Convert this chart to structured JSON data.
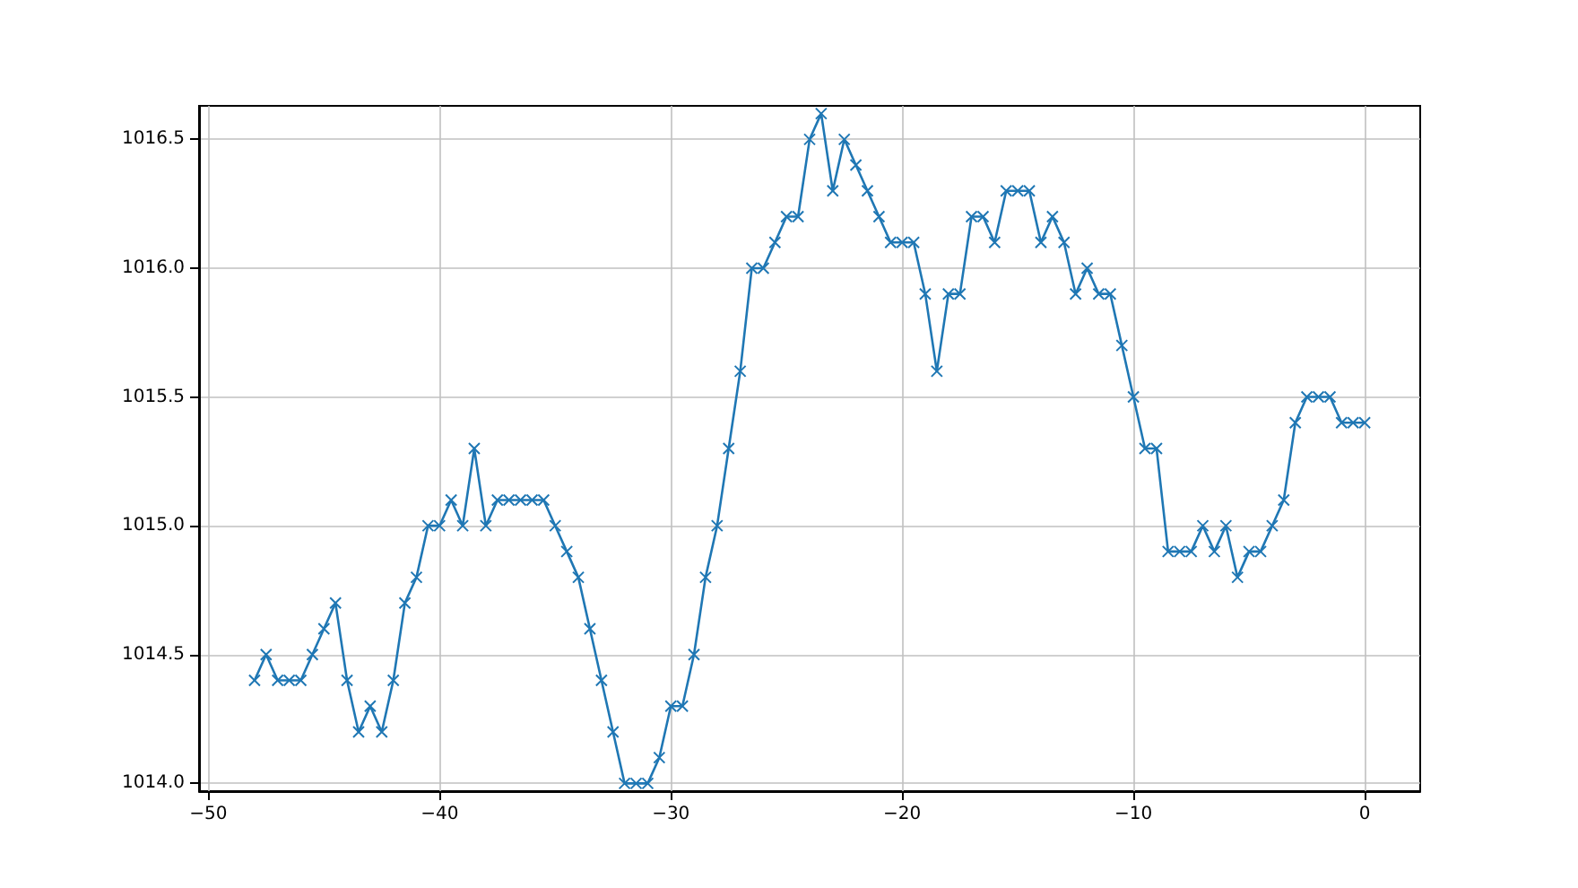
{
  "chart_data": {
    "type": "line",
    "x": [
      -48,
      -47.5,
      -47,
      -46.5,
      -46,
      -45.5,
      -45,
      -44.5,
      -44,
      -43.5,
      -43,
      -42.5,
      -42,
      -41.5,
      -41,
      -40.5,
      -40,
      -39.5,
      -39,
      -38.5,
      -38,
      -37.5,
      -37,
      -36.5,
      -36,
      -35.5,
      -35,
      -34.5,
      -34,
      -33.5,
      -33,
      -32.5,
      -32,
      -31.5,
      -31,
      -30.5,
      -30,
      -29.5,
      -29,
      -28.5,
      -28,
      -27.5,
      -27,
      -26.5,
      -26,
      -25.5,
      -25,
      -24.5,
      -24,
      -23.5,
      -23,
      -22.5,
      -22,
      -21.5,
      -21,
      -20.5,
      -20,
      -19.5,
      -19,
      -18.5,
      -18,
      -17.5,
      -17,
      -16.5,
      -16,
      -15.5,
      -15,
      -14.5,
      -14,
      -13.5,
      -13,
      -12.5,
      -12,
      -11.5,
      -11,
      -10.5,
      -10,
      -9.5,
      -9,
      -8.5,
      -8,
      -7.5,
      -7,
      -6.5,
      -6,
      -5.5,
      -5,
      -4.5,
      -4,
      -3.5,
      -3,
      -2.5,
      -2,
      -1.5,
      -1,
      -0.5,
      0
    ],
    "series": [
      {
        "color": "#1f77b4",
        "values": [
          1014.4,
          1014.5,
          1014.4,
          1014.4,
          1014.4,
          1014.5,
          1014.6,
          1014.7,
          1014.4,
          1014.2,
          1014.3,
          1014.2,
          1014.4,
          1014.7,
          1014.8,
          1015.0,
          1015.0,
          1015.1,
          1015.0,
          1015.3,
          1015.0,
          1015.1,
          1015.1,
          1015.1,
          1015.1,
          1015.1,
          1015.0,
          1014.9,
          1014.8,
          1014.6,
          1014.4,
          1014.2,
          1014.0,
          1014.0,
          1014.0,
          1014.1,
          1014.3,
          1014.3,
          1014.5,
          1014.8,
          1015.0,
          1015.3,
          1015.6,
          1016.0,
          1016.0,
          1016.1,
          1016.2,
          1016.2,
          1016.5,
          1016.6,
          1016.3,
          1016.5,
          1016.4,
          1016.3,
          1016.2,
          1016.1,
          1016.1,
          1016.1,
          1015.9,
          1015.6,
          1015.9,
          1015.9,
          1016.2,
          1016.2,
          1016.1,
          1016.3,
          1016.3,
          1016.3,
          1016.1,
          1016.2,
          1016.1,
          1015.9,
          1016.0,
          1015.9,
          1015.9,
          1015.7,
          1015.5,
          1015.3,
          1015.3,
          1014.9,
          1014.9,
          1014.9,
          1015.0,
          1014.9,
          1015.0,
          1014.8,
          1014.9,
          1014.9,
          1015.0,
          1015.1,
          1015.4,
          1015.5,
          1015.5,
          1015.5,
          1015.4,
          1015.4,
          1015.4
        ]
      }
    ],
    "xlim": [
      -50.4,
      2.4
    ],
    "ylim": [
      1013.97,
      1016.63
    ],
    "xticks": [
      {
        "value": -50,
        "label": "−50"
      },
      {
        "value": -40,
        "label": "−40"
      },
      {
        "value": -30,
        "label": "−30"
      },
      {
        "value": -20,
        "label": "−20"
      },
      {
        "value": -10,
        "label": "−10"
      },
      0
    ],
    "yticks": [
      {
        "value": 1014,
        "label": "1014.0"
      },
      1014.5,
      {
        "value": 1015,
        "label": "1015.0"
      },
      1015.5,
      {
        "value": 1016,
        "label": "1016.0"
      },
      1016.5
    ],
    "grid": true,
    "marker": "cross",
    "line_style": "solid"
  }
}
